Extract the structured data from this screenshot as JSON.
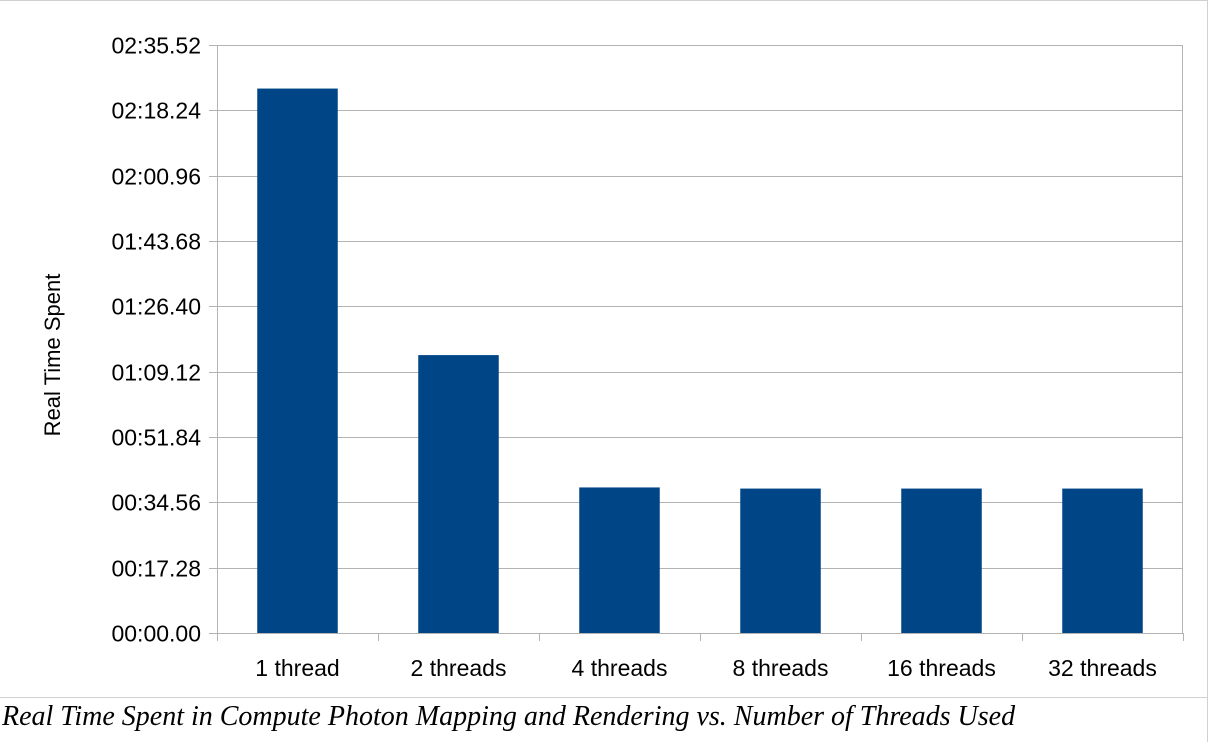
{
  "chart_data": {
    "type": "bar",
    "title": "",
    "xlabel": "",
    "ylabel": "Real Time Spent",
    "categories": [
      "1 thread",
      "2 threads",
      "4 threads",
      "8 threads",
      "16 threads",
      "32 threads"
    ],
    "values": [
      144.0,
      73.5,
      38.5,
      38.2,
      38.2,
      38.2
    ],
    "value_units": "seconds",
    "ylim": [
      0,
      155.52
    ],
    "yticks": [
      0,
      17.28,
      34.56,
      51.84,
      69.12,
      86.4,
      103.68,
      120.96,
      138.24,
      155.52
    ],
    "ytick_labels": [
      "00:00.00",
      "00:17.28",
      "00:34.56",
      "00:51.84",
      "01:09.12",
      "01:26.40",
      "01:43.68",
      "02:00.96",
      "02:18.24",
      "02:35.52"
    ],
    "grid": true,
    "legend": "none",
    "bar_color": "#004586",
    "grid_color": "#b3b3b3"
  },
  "caption": "Real Time Spent in Compute Photon Mapping and Rendering vs. Number of Threads Used"
}
